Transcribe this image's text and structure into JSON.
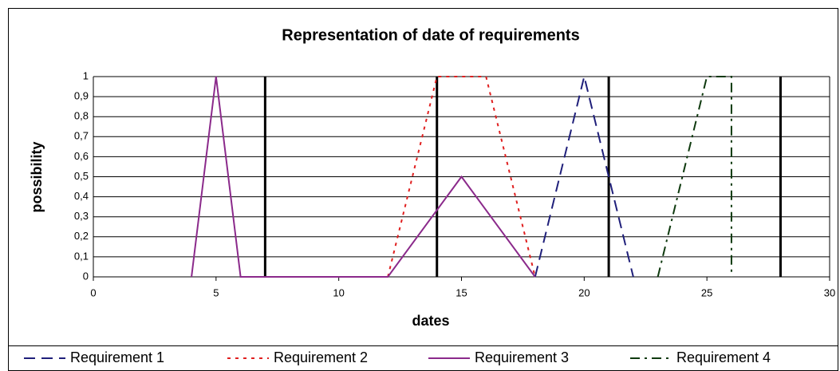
{
  "chart_data": {
    "type": "line",
    "title": "Representation of date of requirements",
    "xlabel": "dates",
    "ylabel": "possibility",
    "xlim": [
      0,
      30
    ],
    "xticks": [
      0,
      5,
      10,
      15,
      20,
      25,
      30
    ],
    "ylim": [
      0,
      1
    ],
    "yticks": [
      0,
      {
        "value": 0.1,
        "label": "0,1"
      },
      {
        "value": 0.2,
        "label": "0,2"
      },
      {
        "value": 0.3,
        "label": "0,3"
      },
      {
        "value": 0.4,
        "label": "0,4"
      },
      {
        "value": 0.5,
        "label": "0,5"
      },
      {
        "value": 0.6,
        "label": "0,6"
      },
      {
        "value": 0.7,
        "label": "0,7"
      },
      {
        "value": 0.8,
        "label": "0,8"
      },
      {
        "value": 0.9,
        "label": "0,9"
      },
      1
    ],
    "grid": true,
    "vlines": [
      7,
      14,
      21,
      28
    ],
    "legend": "bottom",
    "series": [
      {
        "name": "Requirement 1",
        "color": "#1f1f7a",
        "dash": "dashed",
        "x": [
          18,
          20,
          22
        ],
        "values": [
          0,
          1,
          0
        ]
      },
      {
        "name": "Requirement 2",
        "color": "#e02020",
        "dash": "dotted",
        "x": [
          12,
          14,
          16,
          18
        ],
        "values": [
          0,
          1,
          1,
          0
        ]
      },
      {
        "name": "Requirement 3",
        "color": "#8b2a8b",
        "dash": "solid",
        "x": [
          4,
          5,
          6,
          12,
          15,
          18
        ],
        "values": [
          0,
          1,
          0,
          0,
          0.5,
          0
        ]
      },
      {
        "name": "Requirement 4",
        "color": "#0f3a0f",
        "dash": "dashdot",
        "x": [
          23,
          25,
          26,
          26
        ],
        "values": [
          0,
          1,
          1,
          0
        ]
      }
    ]
  }
}
